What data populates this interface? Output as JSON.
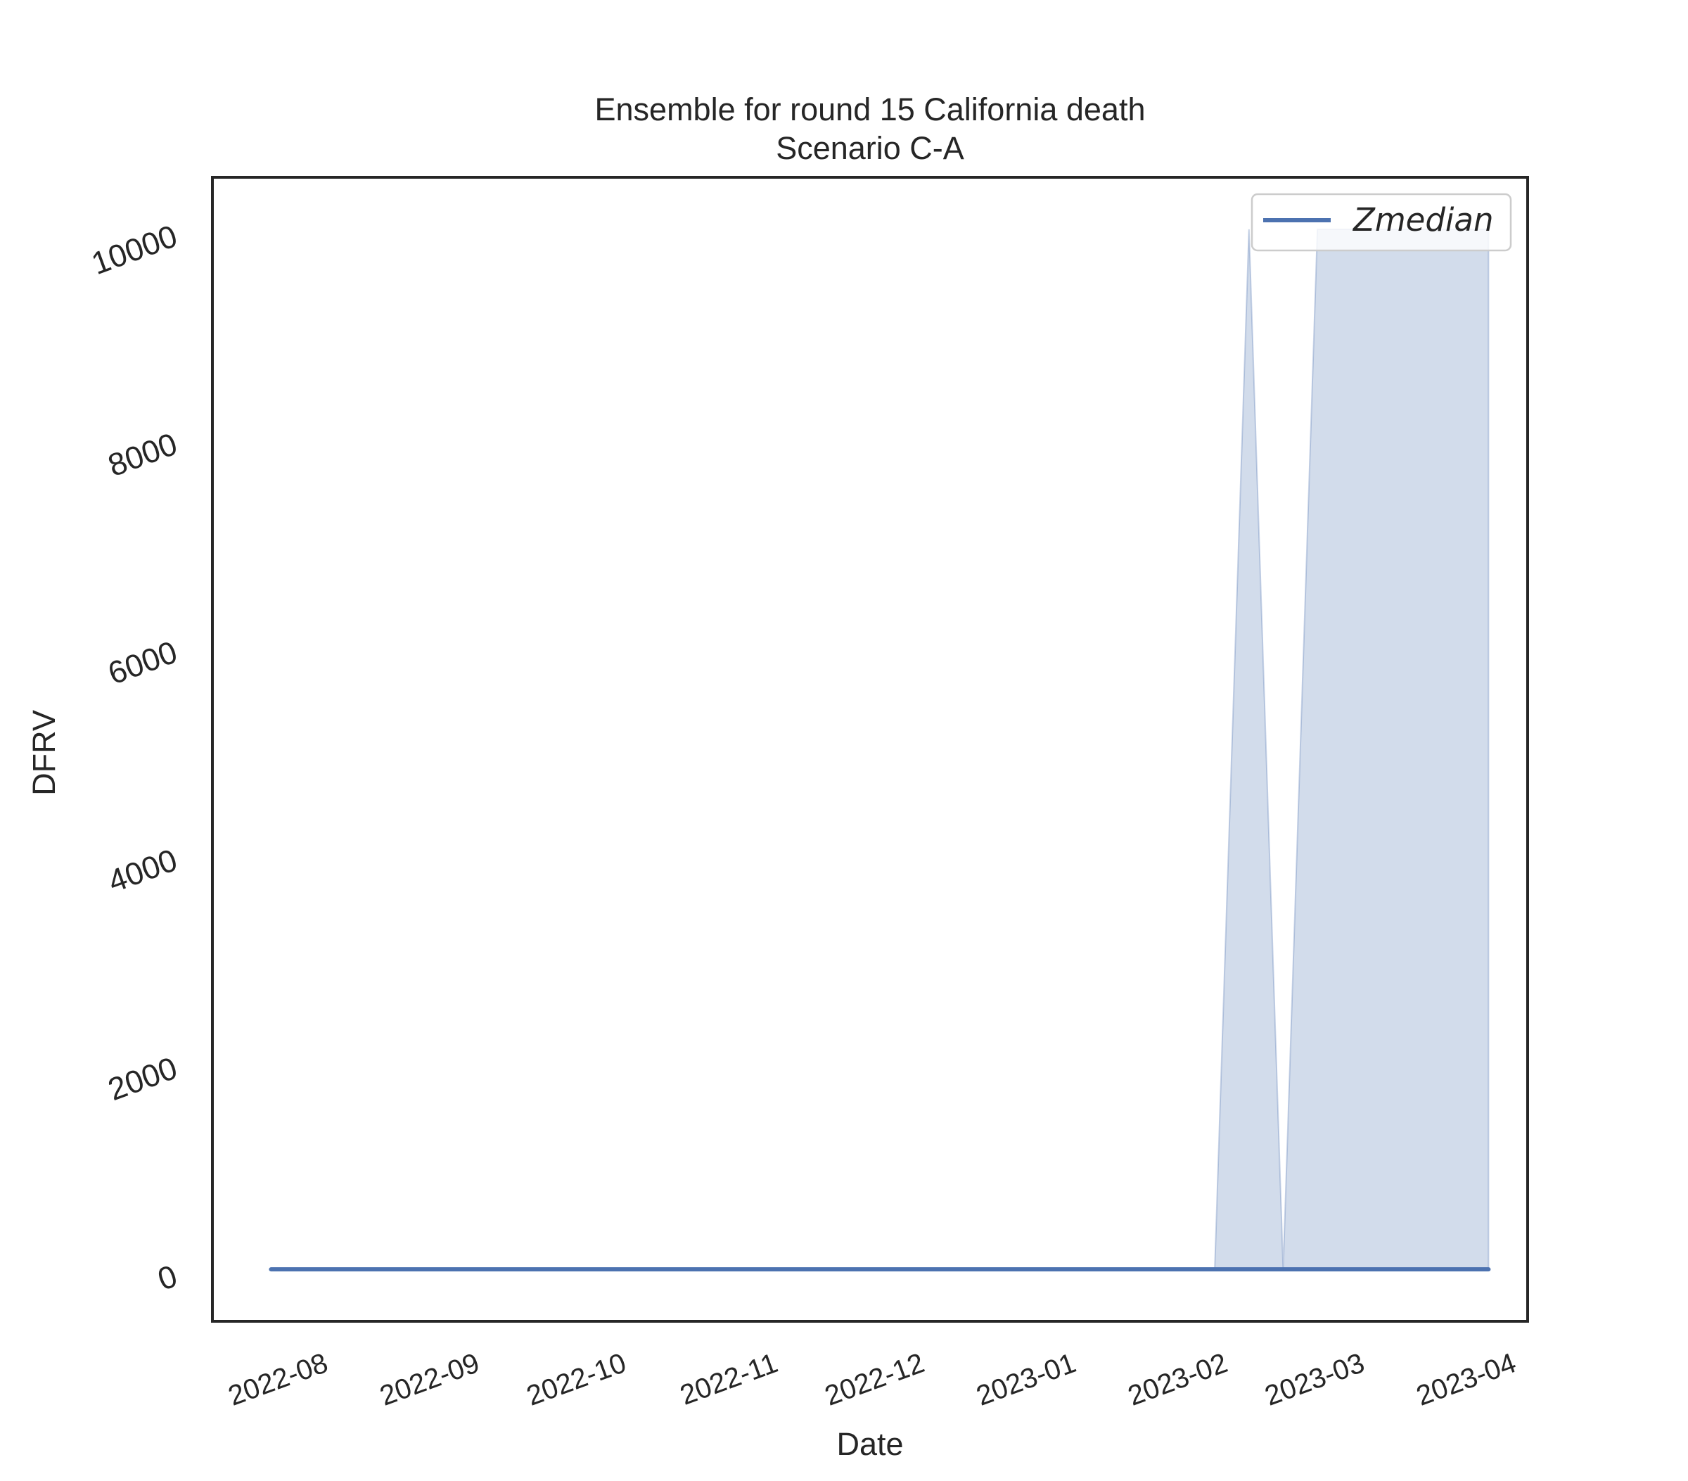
{
  "chart_data": {
    "type": "line",
    "title": "Ensemble for round 15 California death",
    "subtitle": "Scenario C-A",
    "xlabel": "Date",
    "ylabel": "DFRV",
    "xlim": [
      "2022-07-08",
      "2023-04-03"
    ],
    "ylim": [
      -500,
      10500
    ],
    "x_ticks": [
      "2022-08-01",
      "2022-09-01",
      "2022-10-01",
      "2022-11-01",
      "2022-12-01",
      "2023-01-01",
      "2023-02-01",
      "2023-03-01",
      "2023-04-01"
    ],
    "x_tick_labels": [
      "2022-08",
      "2022-09",
      "2022-10",
      "2022-11",
      "2022-12",
      "2023-01",
      "2023-02",
      "2023-03",
      "2023-04"
    ],
    "y_ticks": [
      0,
      2000,
      4000,
      6000,
      8000,
      10000
    ],
    "y_tick_labels": [
      "0",
      "2000",
      "4000",
      "6000",
      "8000",
      "10000"
    ],
    "grid": false,
    "legend_position": "top-right",
    "series": [
      {
        "name": "Zmedian",
        "color": "#4c72b0",
        "x": [
          "2022-07-20",
          "2023-03-26"
        ],
        "values": [
          0,
          0
        ]
      }
    ],
    "band": {
      "color": "#4c72b0",
      "x": [
        "2023-01-29",
        "2023-02-05",
        "2023-02-12",
        "2023-02-19",
        "2023-02-26",
        "2023-03-05",
        "2023-03-12",
        "2023-03-19",
        "2023-03-26"
      ],
      "lower": [
        0,
        0,
        0,
        0,
        0,
        0,
        0,
        0,
        0
      ],
      "upper": [
        0,
        10000,
        0,
        10000,
        10000,
        10000,
        10000,
        10000,
        10000
      ]
    }
  }
}
